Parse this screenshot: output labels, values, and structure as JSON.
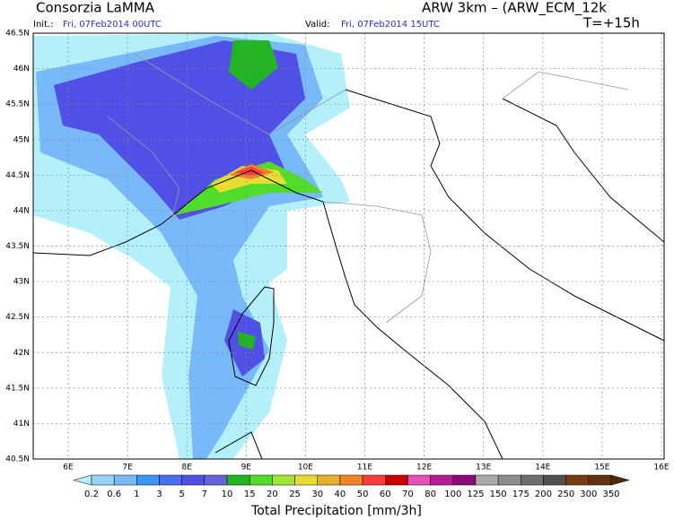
{
  "header": {
    "title": "Consorzia LaMMA",
    "model": "ARW 3km – (ARW_ECM_12k",
    "init_label": "Init.:",
    "init_time": "Fri, 07Feb2014 00UTC",
    "valid_label": "Valid:",
    "valid_time": "Fri, 07Feb2014 15UTC",
    "lead_time": "T=+15h"
  },
  "map": {
    "lat_labels": [
      "46.5N",
      "46N",
      "45.5N",
      "45N",
      "44.5N",
      "44N",
      "43.5N",
      "43N",
      "42.5N",
      "42N",
      "41.5N",
      "41N",
      "40.5N"
    ],
    "lon_labels": [
      "6E",
      "7E",
      "8E",
      "9E",
      "10E",
      "11E",
      "12E",
      "13E",
      "14E",
      "15E",
      "16E"
    ]
  },
  "colorbar": {
    "title": "Total Precipitation [mm/3h]",
    "bounds": [
      0.2,
      0.6,
      1,
      3,
      5,
      7,
      10,
      15,
      20,
      25,
      30,
      40,
      50,
      60,
      70,
      80,
      100,
      125,
      150,
      175,
      200,
      250,
      300,
      350
    ],
    "colors": [
      "#b4f0fa",
      "#96d2fa",
      "#78b9fa",
      "#3c96f5",
      "#4b6ef0",
      "#5050e6",
      "#6464dc",
      "#22b422",
      "#50dc28",
      "#a0e632",
      "#e6dc32",
      "#e6af2d",
      "#f08228",
      "#fa3c3c",
      "#c80000",
      "#e650b4",
      "#b41e96",
      "#8c0a78",
      "#aaaaaa",
      "#8c8c8c",
      "#6e6e6e",
      "#505050",
      "#783c14",
      "#643210",
      "#50280a"
    ]
  }
}
